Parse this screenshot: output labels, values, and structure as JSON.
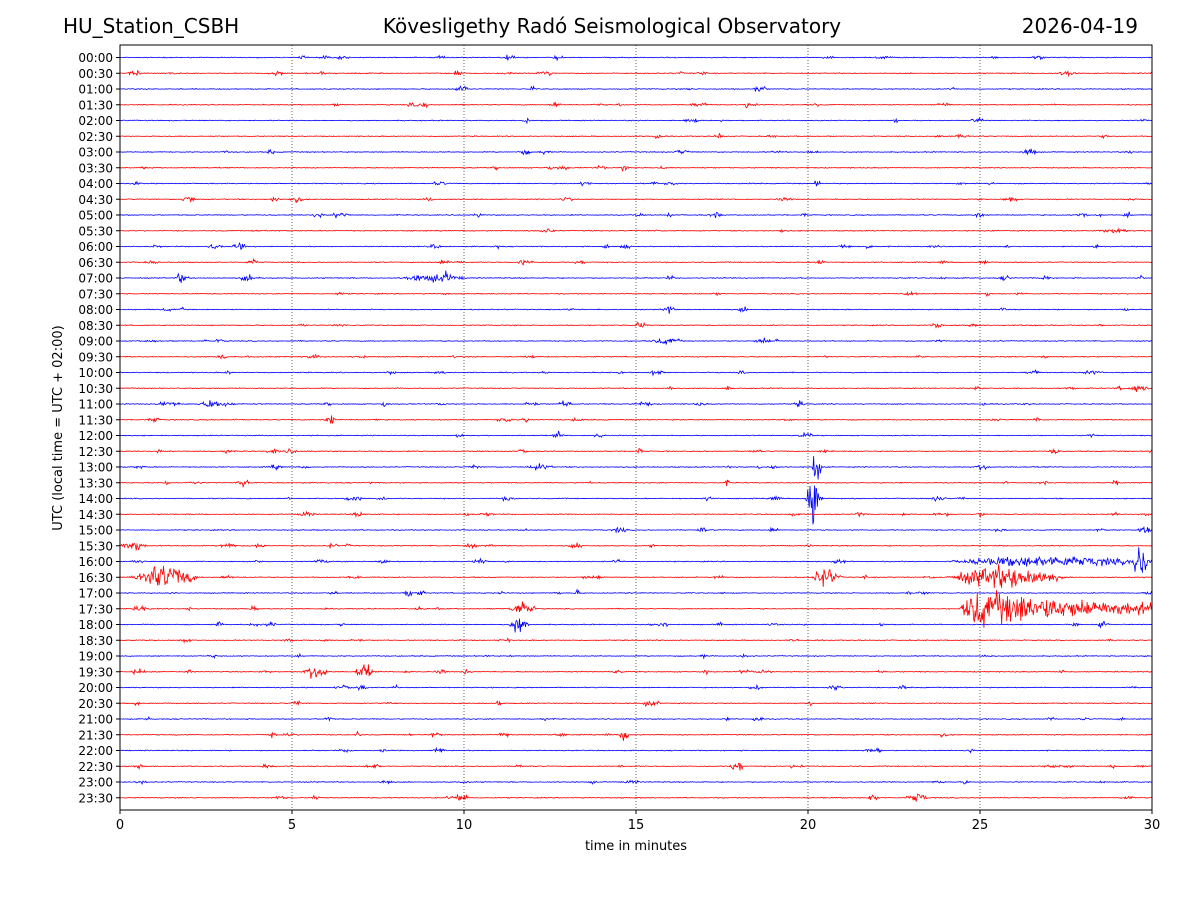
{
  "header": {
    "station": "HU_Station_CSBH",
    "observatory": "Kövesligethy Radó Seismological Observatory",
    "date": "2026-04-19"
  },
  "chart_data": {
    "type": "line",
    "xlabel": "time in minutes",
    "ylabel": "UTC (local time = UTC + 02:00)",
    "xlim": [
      0,
      30
    ],
    "x_ticks": [
      0,
      5,
      10,
      15,
      20,
      25,
      30
    ],
    "grid": "vertical dotted lines at 5-minute ticks",
    "row_labels": [
      "00:00",
      "00:30",
      "01:00",
      "01:30",
      "02:00",
      "02:30",
      "03:00",
      "03:30",
      "04:00",
      "04:30",
      "05:00",
      "05:30",
      "06:00",
      "06:30",
      "07:00",
      "07:30",
      "08:00",
      "08:30",
      "09:00",
      "09:30",
      "10:00",
      "10:30",
      "11:00",
      "11:30",
      "12:00",
      "12:30",
      "13:00",
      "13:30",
      "14:00",
      "14:30",
      "15:00",
      "15:30",
      "16:00",
      "16:30",
      "17:00",
      "17:30",
      "18:00",
      "18:30",
      "19:00",
      "19:30",
      "20:00",
      "20:30",
      "21:00",
      "21:30",
      "22:00",
      "22:30",
      "23:00",
      "23:30"
    ],
    "trace_colors": [
      "#0000ff",
      "#ff0000"
    ],
    "events": [
      {
        "row": "07:00",
        "t": 8.1,
        "dur": 2.0,
        "amp": 0.18
      },
      {
        "row": "09:00",
        "t": 15.4,
        "dur": 1.0,
        "amp": 0.15
      },
      {
        "row": "11:00",
        "t": 1.0,
        "dur": 0.8,
        "amp": 0.12
      },
      {
        "row": "11:00",
        "t": 2.2,
        "dur": 1.2,
        "amp": 0.12
      },
      {
        "row": "13:00",
        "t": 11.8,
        "dur": 0.8,
        "amp": 0.15
      },
      {
        "row": "13:00",
        "t": 20.1,
        "dur": 0.35,
        "amp": 1.6,
        "shape": "spike"
      },
      {
        "row": "14:00",
        "t": 19.9,
        "dur": 0.6,
        "amp": 1.6,
        "shape": "spike"
      },
      {
        "row": "15:00",
        "t": 29.6,
        "dur": 0.4,
        "amp": 0.3
      },
      {
        "row": "15:30",
        "t": 0.0,
        "dur": 0.6,
        "amp": 0.2
      },
      {
        "row": "16:00",
        "t": 24.0,
        "dur": 6.0,
        "amp": 0.25
      },
      {
        "row": "16:00",
        "t": 29.4,
        "dur": 0.6,
        "amp": 0.8
      },
      {
        "row": "16:30",
        "t": 0.3,
        "dur": 2.0,
        "amp": 0.6
      },
      {
        "row": "16:30",
        "t": 24.0,
        "dur": 3.5,
        "amp": 0.55
      },
      {
        "row": "16:30",
        "t": 20.1,
        "dur": 0.8,
        "amp": 0.45
      },
      {
        "row": "17:30",
        "t": 24.4,
        "dur": 5.6,
        "amp": 1.0,
        "shape": "quake"
      },
      {
        "row": "17:30",
        "t": 11.3,
        "dur": 0.8,
        "amp": 0.35
      },
      {
        "row": "18:00",
        "t": 11.3,
        "dur": 0.6,
        "amp": 0.4
      },
      {
        "row": "19:30",
        "t": 5.3,
        "dur": 0.8,
        "amp": 0.35
      },
      {
        "row": "19:30",
        "t": 6.8,
        "dur": 0.6,
        "amp": 0.35
      },
      {
        "row": "21:30",
        "t": 14.5,
        "dur": 0.3,
        "amp": 0.3
      },
      {
        "row": "22:30",
        "t": 17.7,
        "dur": 0.5,
        "amp": 0.25
      },
      {
        "row": "23:30",
        "t": 9.6,
        "dur": 0.6,
        "amp": 0.2
      },
      {
        "row": "23:30",
        "t": 23.0,
        "dur": 0.5,
        "amp": 0.2
      }
    ]
  }
}
